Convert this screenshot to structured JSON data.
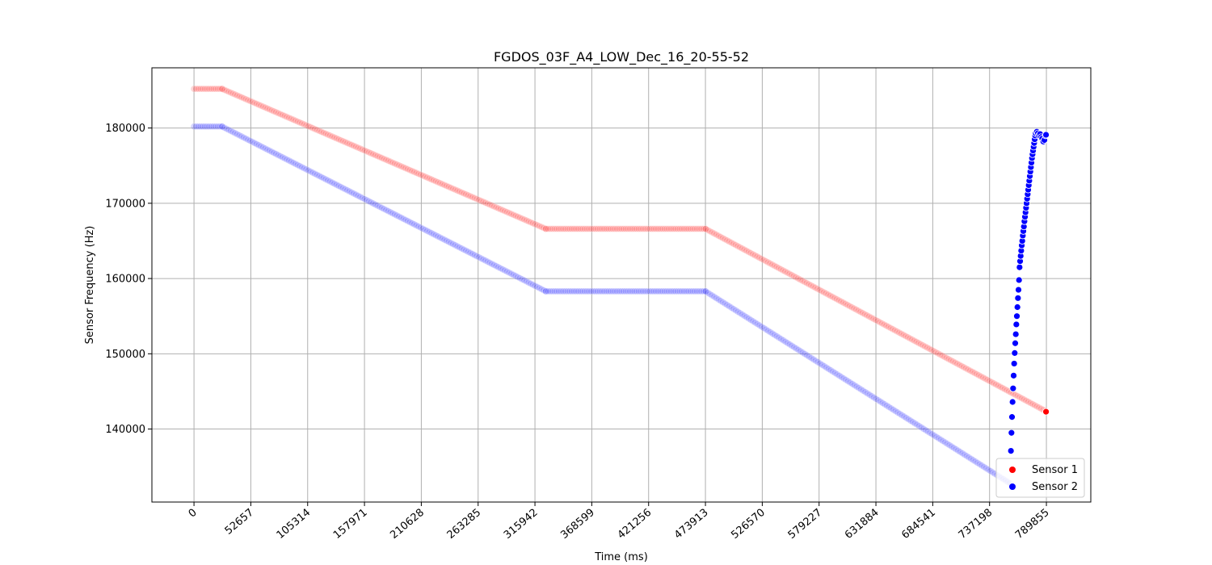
{
  "chart_data": {
    "type": "scatter",
    "title": "FGDOS_03F_A4_LOW_Dec_16_20-55-52",
    "xlabel": "Time (ms)",
    "ylabel": "Sensor Frequency (Hz)",
    "xlim": [
      -39000,
      831000
    ],
    "ylim": [
      130300,
      188000
    ],
    "xticks": [
      0,
      52657,
      105314,
      157971,
      210628,
      263285,
      315942,
      368599,
      421256,
      473913,
      526570,
      579227,
      631884,
      684541,
      737198,
      789855
    ],
    "yticks": [
      140000,
      150000,
      160000,
      170000,
      180000
    ],
    "grid": true,
    "legend_position": "lower-right",
    "series": [
      {
        "name": "Sensor 1",
        "color": "#ff0000",
        "trace_segments": [
          {
            "x_start": 0,
            "x_end": 26000,
            "y_start": 185200,
            "y_end": 185200,
            "step": 2000
          },
          {
            "x_start": 26000,
            "x_end": 326000,
            "y_start": 185200,
            "y_end": 166600,
            "step": 2000
          },
          {
            "x_start": 326000,
            "x_end": 474000,
            "y_start": 166600,
            "y_end": 166600,
            "step": 2000
          },
          {
            "x_start": 474000,
            "x_end": 789000,
            "y_start": 166600,
            "y_end": 142400,
            "step": 2000
          }
        ],
        "points": [
          [
            789500,
            142300
          ]
        ]
      },
      {
        "name": "Sensor 2",
        "color": "#0000ff",
        "trace_segments": [
          {
            "x_start": 0,
            "x_end": 26000,
            "y_start": 180200,
            "y_end": 180200,
            "step": 2000
          },
          {
            "x_start": 26000,
            "x_end": 326000,
            "y_start": 180200,
            "y_end": 158300,
            "step": 2000
          },
          {
            "x_start": 326000,
            "x_end": 474000,
            "y_start": 158300,
            "y_end": 158300,
            "step": 2000
          },
          {
            "x_start": 474000,
            "x_end": 756000,
            "y_start": 158300,
            "y_end": 132800,
            "step": 2000
          }
        ],
        "points": [
          [
            757000,
            137100
          ],
          [
            757500,
            139500
          ],
          [
            758000,
            141600
          ],
          [
            758500,
            143600
          ],
          [
            759000,
            145400
          ],
          [
            759500,
            147100
          ],
          [
            760000,
            148700
          ],
          [
            760500,
            150100
          ],
          [
            761000,
            151400
          ],
          [
            761500,
            152600
          ],
          [
            762000,
            153900
          ],
          [
            762500,
            155000
          ],
          [
            763000,
            156200
          ],
          [
            763500,
            157400
          ],
          [
            764000,
            158500
          ],
          [
            764500,
            159800
          ],
          [
            765000,
            161500
          ],
          [
            765500,
            162300
          ],
          [
            766000,
            163000
          ],
          [
            766500,
            163700
          ],
          [
            767000,
            164400
          ],
          [
            767500,
            165000
          ],
          [
            768000,
            165700
          ],
          [
            768500,
            166300
          ],
          [
            769000,
            166900
          ],
          [
            769500,
            167600
          ],
          [
            770000,
            168200
          ],
          [
            770500,
            168800
          ],
          [
            771000,
            169400
          ],
          [
            771500,
            170000
          ],
          [
            772000,
            170600
          ],
          [
            772500,
            171200
          ],
          [
            773000,
            171800
          ],
          [
            773500,
            172400
          ],
          [
            774000,
            173000
          ],
          [
            774500,
            173600
          ],
          [
            775000,
            174200
          ],
          [
            775500,
            174800
          ],
          [
            776000,
            175400
          ],
          [
            776500,
            176000
          ],
          [
            777000,
            176500
          ],
          [
            777500,
            177000
          ],
          [
            778000,
            177500
          ],
          [
            778500,
            178000
          ],
          [
            779000,
            178500
          ],
          [
            779500,
            179000
          ],
          [
            780000,
            179300
          ],
          [
            781000,
            179500
          ],
          [
            782000,
            179300
          ],
          [
            783000,
            179000
          ],
          [
            784000,
            179200
          ],
          [
            785000,
            178800
          ],
          [
            786000,
            178600
          ],
          [
            787000,
            178200
          ],
          [
            788000,
            178400
          ],
          [
            789000,
            179000
          ],
          [
            789500,
            179100
          ]
        ]
      }
    ]
  }
}
